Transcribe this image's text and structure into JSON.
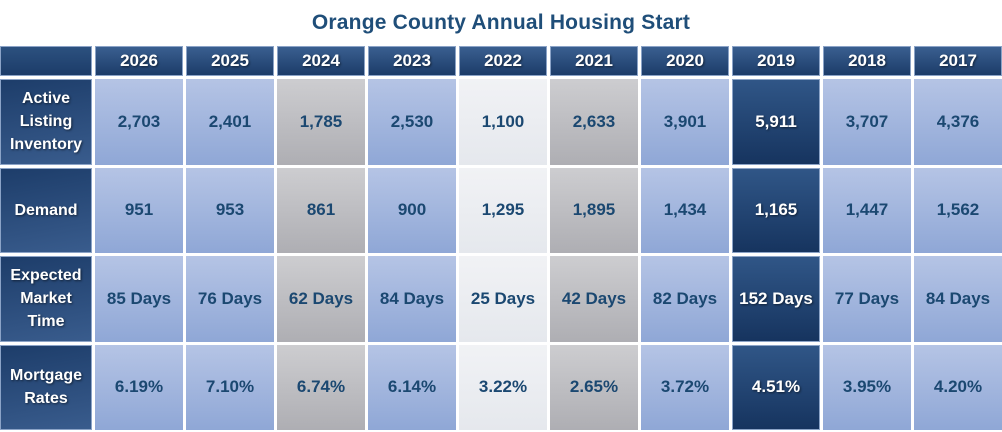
{
  "title": "Orange County Annual Housing Start",
  "colors": {
    "title_text": "#1f4e79",
    "header_navy_top": "#3a5f90",
    "header_navy_bottom": "#1c3c69",
    "cell_blue": "#9fb4dc",
    "cell_gray": "#bebec2",
    "cell_light": "#ebedf1",
    "cell_dark_navy": "#1f4473",
    "data_text_navy": "#1b4871",
    "gap_white": "#ffffff"
  },
  "chart_data": {
    "type": "table",
    "title": "Orange County Annual Housing Start",
    "columns": [
      "2026",
      "2025",
      "2024",
      "2023",
      "2022",
      "2021",
      "2020",
      "2019",
      "2018",
      "2017"
    ],
    "column_styles": [
      "blue",
      "blue",
      "gray",
      "blue",
      "light",
      "gray",
      "blue",
      "dark",
      "blue",
      "blue"
    ],
    "rows": [
      {
        "label": "Active Listing Inventory",
        "values": [
          "2,703",
          "2,401",
          "1,785",
          "2,530",
          "1,100",
          "2,633",
          "3,901",
          "5,911",
          "3,707",
          "4,376"
        ]
      },
      {
        "label": "Demand",
        "values": [
          "951",
          "953",
          "861",
          "900",
          "1,295",
          "1,895",
          "1,434",
          "1,165",
          "1,447",
          "1,562"
        ]
      },
      {
        "label": "Expected Market Time",
        "values": [
          "85 Days",
          "76 Days",
          "62 Days",
          "84 Days",
          "25 Days",
          "42 Days",
          "82 Days",
          "152 Days",
          "77 Days",
          "84 Days"
        ]
      },
      {
        "label": "Mortgage Rates",
        "values": [
          "6.19%",
          "7.10%",
          "6.74%",
          "6.14%",
          "3.22%",
          "2.65%",
          "3.72%",
          "4.51%",
          "3.95%",
          "4.20%"
        ]
      }
    ],
    "layout": {
      "legend": false,
      "grid": false,
      "highlight_column": "2019"
    }
  }
}
